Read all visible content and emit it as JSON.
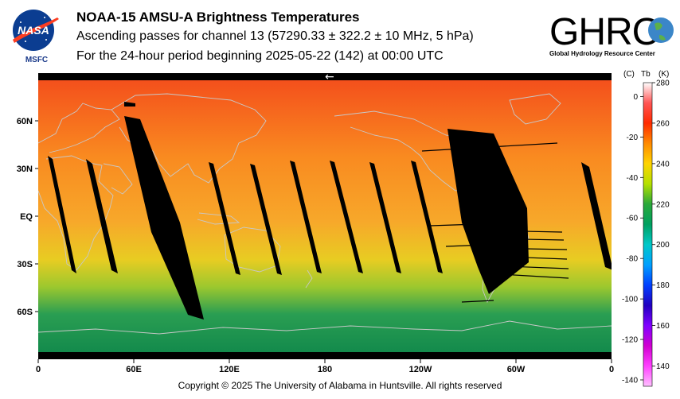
{
  "header": {
    "title": "NOAA-15 AMSU-A Brightness Temperatures",
    "subtitle": "Ascending passes for channel 13 (57290.33 ± 322.2 ± 10 MHz, 5 hPa)",
    "period": "For the 24-hour period beginning 2025-05-22 (142) at 00:00 UTC"
  },
  "logos": {
    "nasa_text": "NASA",
    "nasa_sub": "MSFC",
    "ghrc_text": "GHRC",
    "ghrc_sub": "Global Hydrology Resource Center"
  },
  "map": {
    "lon_ticks": [
      {
        "lon": 0,
        "label": "0"
      },
      {
        "lon": 60,
        "label": "60E"
      },
      {
        "lon": 120,
        "label": "120E"
      },
      {
        "lon": 180,
        "label": "180"
      },
      {
        "lon": 240,
        "label": "120W"
      },
      {
        "lon": 300,
        "label": "60W"
      },
      {
        "lon": 360,
        "label": "0"
      }
    ],
    "lat_ticks": [
      {
        "lat": 60,
        "label": "60N"
      },
      {
        "lat": 30,
        "label": "30N"
      },
      {
        "lat": 0,
        "label": "EQ"
      },
      {
        "lat": -30,
        "label": "30S"
      },
      {
        "lat": -60,
        "label": "60S"
      }
    ],
    "lat_range": [
      -90,
      90
    ],
    "lon_range": [
      0,
      360
    ],
    "arrow_glyph": "←",
    "colors": {
      "no_data": "#000000",
      "coastline": "#c8c8c8",
      "north_band": "#f4501c",
      "mid_band": "#f98a20",
      "tropics": "#f7a82a",
      "south_subtropics": "#e8cc22",
      "south_mid": "#9cc82e",
      "south_high": "#2a9e52",
      "antarctic": "#138a4c"
    }
  },
  "colorbar": {
    "header_c": "(C)",
    "header_tb": "Tb",
    "header_k": "(K)",
    "kelvin_range": [
      130,
      280
    ],
    "kelvin_ticks": [
      280,
      260,
      240,
      220,
      200,
      180,
      160,
      140
    ],
    "celsius_ticks": [
      0,
      -20,
      -40,
      -60,
      -80,
      -100,
      -120,
      -140
    ],
    "stops": [
      {
        "k": 280,
        "color": "#ffffff"
      },
      {
        "k": 270,
        "color": "#ff5555"
      },
      {
        "k": 260,
        "color": "#ff2a00"
      },
      {
        "k": 250,
        "color": "#ff8a00"
      },
      {
        "k": 240,
        "color": "#ffd400"
      },
      {
        "k": 230,
        "color": "#b4e000"
      },
      {
        "k": 220,
        "color": "#2aa83a"
      },
      {
        "k": 210,
        "color": "#00a060"
      },
      {
        "k": 200,
        "color": "#00c8c8"
      },
      {
        "k": 190,
        "color": "#00a0ff"
      },
      {
        "k": 180,
        "color": "#0040ff"
      },
      {
        "k": 170,
        "color": "#2000c0"
      },
      {
        "k": 160,
        "color": "#8000ff"
      },
      {
        "k": 150,
        "color": "#d000d0"
      },
      {
        "k": 140,
        "color": "#ff40ff"
      },
      {
        "k": 130,
        "color": "#ffc0ff"
      }
    ]
  },
  "footer": {
    "copyright": "Copyright © 2025 The University of Alabama in Huntsville.  All rights reserved"
  }
}
